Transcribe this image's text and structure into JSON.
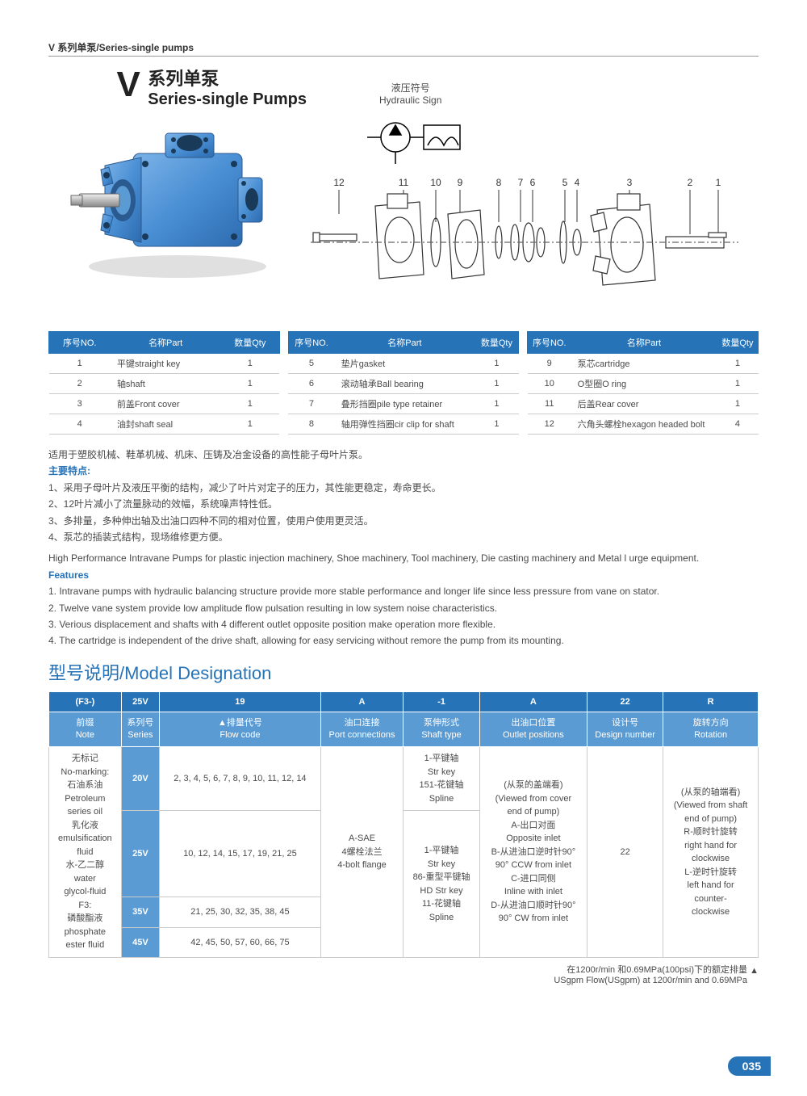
{
  "header": "V 系列单泵/Series-single pumps",
  "title": {
    "v": "V",
    "cn": "系列单泵",
    "en": "Series-single Pumps"
  },
  "hydraulic_label": {
    "cn": "液压符号",
    "en": "Hydraulic Sign"
  },
  "diagram_numbers": [
    "12",
    "11",
    "10",
    "9",
    "8",
    "7 6",
    "5 4",
    "3",
    "2",
    "1"
  ],
  "parts_header": {
    "no": "序号NO.",
    "part": "名称Part",
    "qty": "数量Qty"
  },
  "parts": {
    "t1": [
      {
        "no": "1",
        "part": "平键straight key",
        "qty": "1"
      },
      {
        "no": "2",
        "part": "轴shaft",
        "qty": "1"
      },
      {
        "no": "3",
        "part": "前盖Front cover",
        "qty": "1"
      },
      {
        "no": "4",
        "part": "油封shaft seal",
        "qty": "1"
      }
    ],
    "t2": [
      {
        "no": "5",
        "part": "垫片gasket",
        "qty": "1"
      },
      {
        "no": "6",
        "part": "滚动轴承Ball bearing",
        "qty": "1"
      },
      {
        "no": "7",
        "part": "叠形挡圈pile type retainer",
        "qty": "1"
      },
      {
        "no": "8",
        "part": "轴用弹性挡圈cir clip for shaft",
        "qty": "1"
      }
    ],
    "t3": [
      {
        "no": "9",
        "part": "泵芯cartridge",
        "qty": "1"
      },
      {
        "no": "10",
        "part": "O型圈O ring",
        "qty": "1"
      },
      {
        "no": "11",
        "part": "后盖Rear cover",
        "qty": "1"
      },
      {
        "no": "12",
        "part": "六角头螺栓hexagon headed bolt",
        "qty": "4"
      }
    ]
  },
  "desc": {
    "intro_cn": "适用于塑胶机械、鞋革机械、机床、压铸及冶金设备的高性能子母叶片泵。",
    "feat_head_cn": "主要特点:",
    "feat_cn": [
      "1、采用子母叶片及液压平衡的结构，减少了叶片对定子的压力，其性能更稳定，寿命更长。",
      "2、12叶片减小了流量脉动的效幅，系统噪声特性低。",
      "3、多排量，多种伸出轴及出油口四种不同的相对位置，使用户使用更灵活。",
      "4、泵芯的插装式结构，现场维修更方便。"
    ],
    "intro_en": "High Performance Intravane Pumps for plastic injection machinery, Shoe machinery, Tool machinery, Die casting machinery and Metal l urge equipment.",
    "feat_head_en": "Features",
    "feat_en": [
      "1. Intravane pumps with hydraulic balancing structure provide more stable performance and longer life since less pressure from vane on stator.",
      "2. Twelve vane system provide low amplitude flow pulsation resulting in low system noise characteristics.",
      "3. Verious displacement and shafts with 4 different outlet opposite position make operation more flexible.",
      "4. The cartridge is independent of the drive shaft, allowing for easy servicing without remore the pump from its mounting."
    ]
  },
  "model_heading": "型号说明/Model Designation",
  "model": {
    "codes": [
      "(F3-)",
      "25V",
      "19",
      "A",
      "-1",
      "A",
      "22",
      "R"
    ],
    "labels": [
      {
        "cn": "前缀",
        "en": "Note"
      },
      {
        "cn": "系列号",
        "en": "Series"
      },
      {
        "cn": "▲排量代号",
        "en": "Flow code"
      },
      {
        "cn": "油口连接",
        "en": "Port connections"
      },
      {
        "cn": "泵伸形式",
        "en": "Shaft type"
      },
      {
        "cn": "出油口位置",
        "en": "Outlet positions"
      },
      {
        "cn": "设计号",
        "en": "Design number"
      },
      {
        "cn": "旋转方向",
        "en": "Rotation"
      }
    ],
    "note_cell": "无标记\nNo-marking:\n石油系油\nPetroleum\nseries oil\n乳化液\nemulsification\nfluid\n水-乙二醇\nwater\nglycol-fluid\nF3:\n磷酸酯液\nphosphate\nester fluid",
    "series": [
      "20V",
      "25V",
      "35V",
      "45V"
    ],
    "flows": [
      "2, 3, 4, 5, 6, 7, 8, 9, 10, 11, 12, 14",
      "10, 12, 14, 15, 17, 19, 21, 25",
      "21, 25, 30, 32, 35, 38, 45",
      "42, 45, 50, 57, 60, 66, 75"
    ],
    "port": "A-SAE\n4螺栓法兰\n4-bolt flange",
    "shaft1": "1-平键轴\nStr key\n151-花键轴\nSpline",
    "shaft2": "1-平键轴\nStr key\n86-重型平键轴\nHD Str key\n11-花键轴\nSpline",
    "outlet": "(从泵的盖端看)\n(Viewed from cover\nend of pump)\nA-出口对面\nOpposite inlet\nB-从进油口逆时针90°\n90° CCW from inlet\nC-进口同侧\nInline with inlet\nD-从进油口顺时针90°\n90° CW from inlet",
    "design": "22",
    "rotation": "(从泵的轴端看)\n(Viewed from shaft\nend of pump)\nR-顺时针旋转\nright hand for\nclockwise\nL-逆时针旋转\nleft hand for\ncounter-\nclockwise"
  },
  "footnote": {
    "cn": "在1200r/min 和0.69MPa(100psi)下的额定排量",
    "en": "USgpm Flow(USgpm) at 1200r/min and 0.69MPa"
  },
  "page": "035",
  "colors": {
    "primary": "#2673b8",
    "secondary": "#5a9bd4",
    "pump": "#4a8fd4"
  }
}
